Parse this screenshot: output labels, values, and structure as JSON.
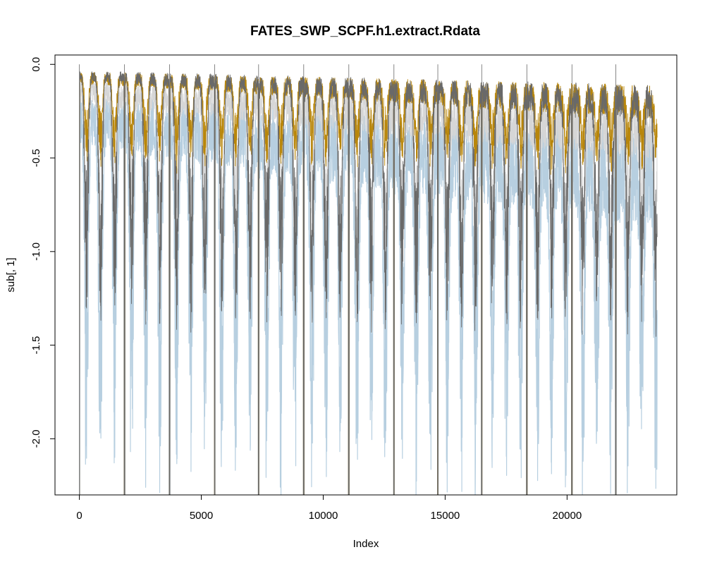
{
  "chart_data": {
    "type": "line",
    "title": "FATES_SWP_SCPF.h1.extract.Rdata",
    "xlabel": "Index",
    "ylabel": "sub[, 1]",
    "xlim": [
      -1000,
      24500
    ],
    "ylim": [
      -2.3,
      0.05
    ],
    "x_ticks": [
      0,
      5000,
      10000,
      15000,
      20000
    ],
    "x_tick_labels": [
      "0",
      "5000",
      "10000",
      "15000",
      "20000"
    ],
    "y_ticks": [
      0.0,
      -0.5,
      -1.0,
      -1.5,
      -2.0
    ],
    "y_tick_labels": [
      "0.0",
      "-0.5",
      "-1.0",
      "-1.5",
      "-2.0"
    ],
    "n_points": 23700,
    "grid": false,
    "legend": "none",
    "series": [
      {
        "color": "#b7cfe0",
        "upper_start": -0.3,
        "upper_end": -0.6,
        "cycle_depth": -2.25,
        "role": "deepest band"
      },
      {
        "color": "#d6d6d6",
        "upper_start": -0.15,
        "upper_end": -0.35,
        "cycle_depth": -1.1,
        "role": "middle band"
      },
      {
        "color": "#b8860b",
        "upper_start": -0.07,
        "upper_end": -0.2,
        "cycle_depth": -0.55,
        "role": "orange trace"
      },
      {
        "color": "#696969",
        "upper_start": -0.06,
        "upper_end": -0.2,
        "cycle_depth": -1.45,
        "role": "dark band"
      }
    ],
    "annual_drop_indices": [
      0,
      1850,
      3700,
      5550,
      7350,
      9200,
      11050,
      12900,
      14700,
      16500,
      18350,
      20200,
      22000
    ]
  }
}
